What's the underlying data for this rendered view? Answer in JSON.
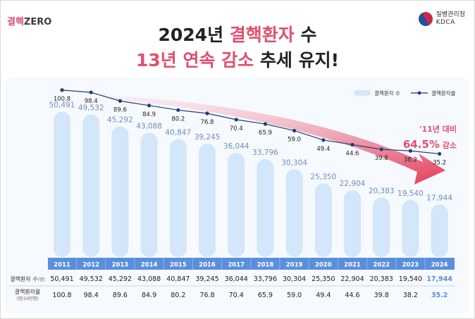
{
  "header": {
    "brand_part1": "결핵",
    "brand_part2": "ZERO",
    "agency_name": "질병관리청",
    "agency_abbr": "KDCA",
    "title_line1_a": "2024년 ",
    "title_line1_hl": "결핵환자",
    "title_line1_b": " 수",
    "title_line2_hl": "13년 연속 감소",
    "title_line2_b": " 추세 유지!"
  },
  "annotation": {
    "line1": "'11년 대비",
    "line2_value": "64.5%",
    "line2_suffix": " 감소"
  },
  "table": {
    "row1_label": "결핵환자 수",
    "row1_unit": "(명)",
    "row2_label": "결핵환자율",
    "row2_unit": "(명/10만명)"
  },
  "colors": {
    "bar": "#d4e6f9",
    "line": "#1e3d7a",
    "accent": "#e0506f",
    "year_band": "#5b8fdc",
    "last_value": "#5b8fdc"
  },
  "chart_data": {
    "type": "bar",
    "title": "2024년 결핵환자 수 13년 연속 감소 추세 유지!",
    "categories": [
      "2011",
      "2012",
      "2013",
      "2014",
      "2015",
      "2016",
      "2017",
      "2018",
      "2019",
      "2020",
      "2021",
      "2022",
      "2023",
      "2024"
    ],
    "series": [
      {
        "name": "결핵환자 수",
        "type": "bar",
        "values": [
          50491,
          49532,
          45292,
          43088,
          40847,
          39245,
          36044,
          33796,
          30304,
          25350,
          22904,
          20383,
          19540,
          17944
        ]
      },
      {
        "name": "결핵환자율",
        "type": "line",
        "values": [
          100.8,
          98.4,
          89.6,
          84.9,
          80.2,
          76.8,
          70.4,
          65.9,
          59.0,
          49.4,
          44.6,
          39.8,
          38.2,
          35.2
        ]
      }
    ],
    "bar_labels": [
      "50,491",
      "49,532",
      "45,292",
      "43,088",
      "40,847",
      "39,245",
      "36,044",
      "33,796",
      "30,304",
      "25,350",
      "22,904",
      "20,383",
      "19,540",
      "17,944"
    ],
    "rate_labels": [
      "100.8",
      "98.4",
      "89.6",
      "84.9",
      "80.2",
      "76.8",
      "70.4",
      "65.9",
      "59.0",
      "49.4",
      "44.6",
      "39.8",
      "38.2",
      "35.2"
    ],
    "legend": [
      "결핵환자 수",
      "결핵환자율"
    ],
    "legend_position": "top-right",
    "xlabel": "",
    "ylabel": ""
  }
}
